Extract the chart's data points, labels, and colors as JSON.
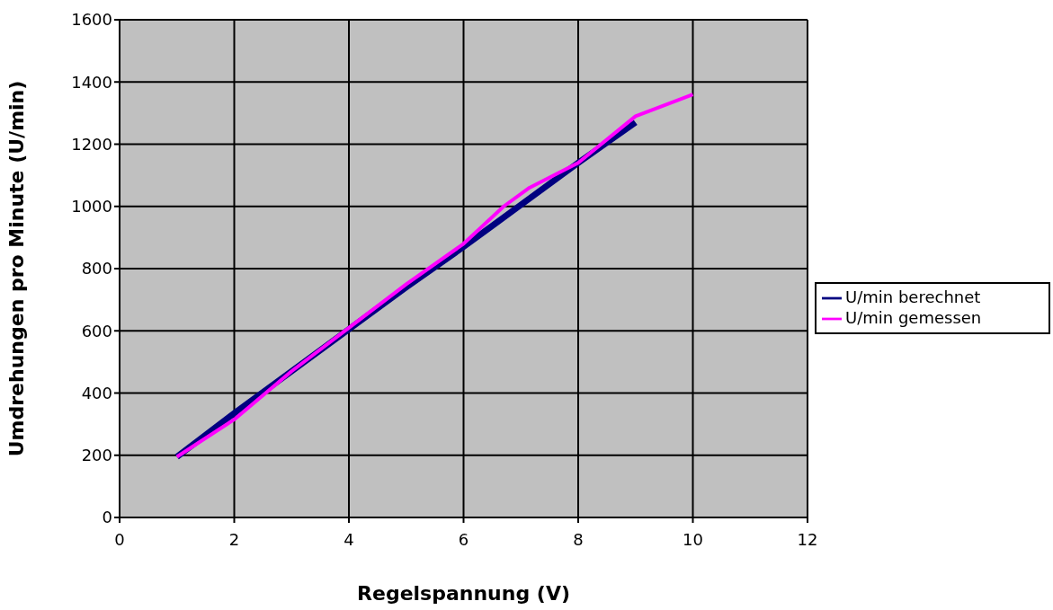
{
  "chart_data": {
    "type": "line",
    "xlabel": "Regelspannung (V)",
    "ylabel": "Umdrehungen pro Minute (U/min)",
    "xlim": [
      0,
      12
    ],
    "xticks": [
      0,
      2,
      4,
      6,
      8,
      10,
      12
    ],
    "ylim": [
      0,
      1600
    ],
    "yticks": [
      0,
      200,
      400,
      600,
      800,
      1000,
      1200,
      1400,
      1600
    ],
    "grid": true,
    "legend": "right",
    "marker": "none",
    "line_style": "solid",
    "series": [
      {
        "name": "U/min berechnet",
        "color": "#000080",
        "x": [
          1,
          2,
          3,
          4,
          5,
          6,
          7,
          8,
          9
        ],
        "values": [
          195,
          335,
          470,
          605,
          740,
          870,
          1005,
          1140,
          1270
        ]
      },
      {
        "name": "U/min gemessen",
        "color": "#ff00ff",
        "x": [
          1,
          2,
          3,
          4,
          5,
          6,
          6.7,
          7.15,
          8,
          9,
          10
        ],
        "values": [
          195,
          315,
          470,
          610,
          750,
          880,
          1000,
          1060,
          1140,
          1290,
          1360
        ]
      }
    ]
  }
}
